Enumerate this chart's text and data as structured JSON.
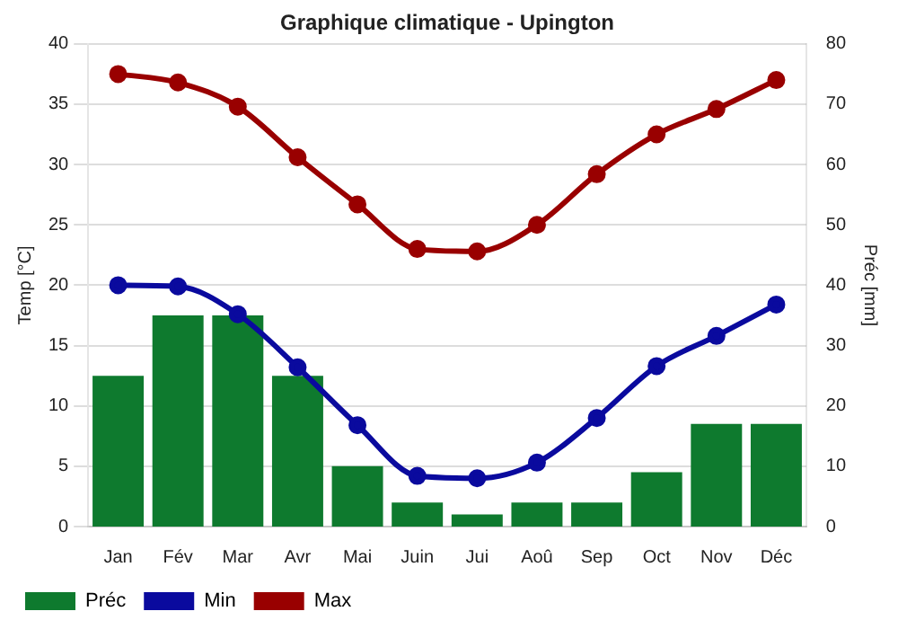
{
  "chart_data": {
    "type": "bar",
    "title": "Graphique climatique - Upington",
    "ylabel": "Temp [°C]",
    "y2label": "Préc [mm]",
    "categories": [
      "Jan",
      "Fév",
      "Mar",
      "Avr",
      "Mai",
      "Juin",
      "Jui",
      "Aoû",
      "Sep",
      "Oct",
      "Nov",
      "Déc"
    ],
    "series": [
      {
        "name": "Préc",
        "axis": "y2",
        "color": "#0e7a2e",
        "values": [
          25,
          35,
          35,
          25,
          10,
          4,
          2,
          4,
          4,
          9,
          17,
          17
        ]
      },
      {
        "name": "Min",
        "type": "line",
        "color": "#0a0a9e",
        "values": [
          20,
          19.9,
          17.6,
          13.2,
          8.4,
          4.2,
          4,
          5.3,
          9,
          13.3,
          15.8,
          18.4
        ]
      },
      {
        "name": "Max",
        "type": "line",
        "color": "#990000",
        "values": [
          37.5,
          36.8,
          34.8,
          30.6,
          26.7,
          23,
          22.8,
          25,
          29.2,
          32.5,
          34.6,
          37
        ]
      }
    ],
    "ylim": [
      0,
      40
    ],
    "yticks": [
      0,
      5,
      10,
      15,
      20,
      25,
      30,
      35,
      40
    ],
    "y2lim": [
      0,
      80
    ],
    "y2ticks": [
      0,
      10,
      20,
      30,
      40,
      50,
      60,
      70,
      80
    ],
    "grid": "y",
    "legend": "bottom left",
    "marker": "circle",
    "line_style": "solid"
  }
}
